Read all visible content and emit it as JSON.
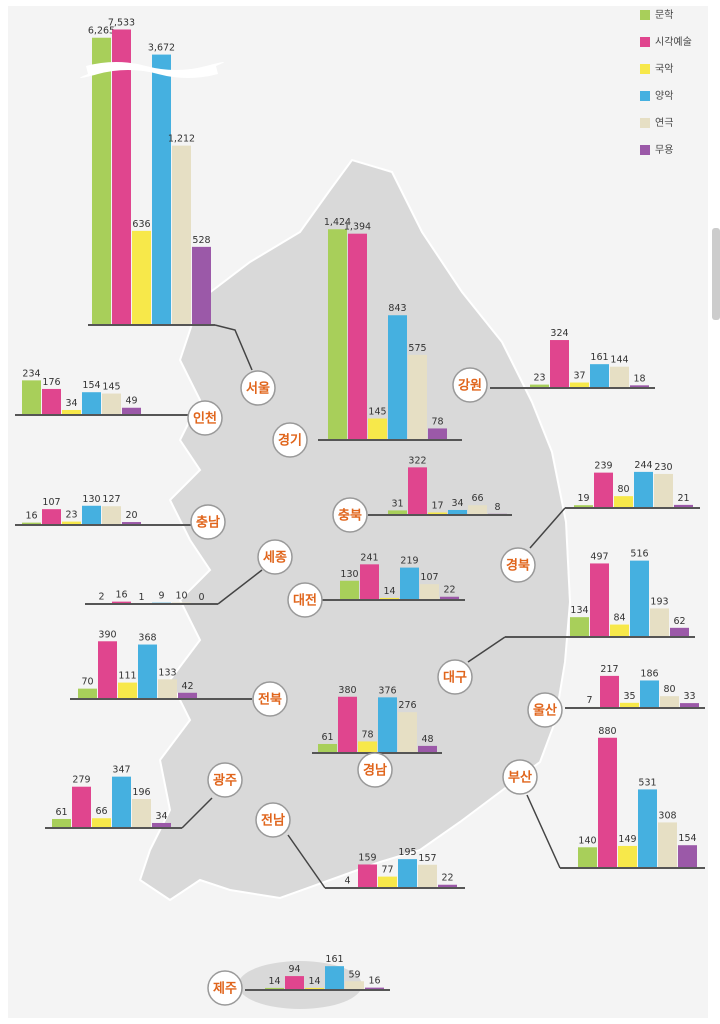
{
  "legend": {
    "labels": [
      "문학",
      "시각예술",
      "국악",
      "양악",
      "연극",
      "무용"
    ],
    "colors": [
      "#a8cf5a",
      "#e0458e",
      "#f7e84a",
      "#45b0e0",
      "#e6dfc4",
      "#9b59a8"
    ]
  },
  "chart_data": [
    {
      "type": "bar",
      "title": "서울",
      "values": [
        6265,
        7533,
        636,
        3672,
        1212,
        528
      ],
      "value_labels": [
        "6,265",
        "7,533",
        "636",
        "3,672",
        "1,212",
        "528"
      ]
    },
    {
      "type": "bar",
      "title": "인천",
      "values": [
        234,
        176,
        34,
        154,
        145,
        49
      ]
    },
    {
      "type": "bar",
      "title": "경기",
      "values": [
        1424,
        1394,
        145,
        843,
        575,
        78
      ],
      "value_labels": [
        "1,424",
        "1,394",
        "145",
        "843",
        "575",
        "78"
      ]
    },
    {
      "type": "bar",
      "title": "강원",
      "values": [
        23,
        324,
        37,
        161,
        144,
        18
      ]
    },
    {
      "type": "bar",
      "title": "충남",
      "values": [
        16,
        107,
        23,
        130,
        127,
        20
      ]
    },
    {
      "type": "bar",
      "title": "충북",
      "values": [
        31,
        322,
        17,
        34,
        66,
        8
      ]
    },
    {
      "type": "bar",
      "title": "세종",
      "values": [
        2,
        16,
        1,
        9,
        10,
        0
      ]
    },
    {
      "type": "bar",
      "title": "대전",
      "values": [
        130,
        241,
        14,
        219,
        107,
        22
      ]
    },
    {
      "type": "bar",
      "title": "경북",
      "values": [
        19,
        239,
        80,
        244,
        230,
        21
      ]
    },
    {
      "type": "bar",
      "title": "대구",
      "values": [
        134,
        497,
        84,
        516,
        193,
        62
      ]
    },
    {
      "type": "bar",
      "title": "전북",
      "values": [
        70,
        390,
        111,
        368,
        133,
        42
      ]
    },
    {
      "type": "bar",
      "title": "경남",
      "values": [
        61,
        380,
        78,
        376,
        276,
        48
      ]
    },
    {
      "type": "bar",
      "title": "울산",
      "values": [
        7,
        217,
        35,
        186,
        80,
        33
      ]
    },
    {
      "type": "bar",
      "title": "광주",
      "values": [
        61,
        279,
        66,
        347,
        196,
        34
      ]
    },
    {
      "type": "bar",
      "title": "부산",
      "values": [
        140,
        880,
        149,
        531,
        308,
        154
      ]
    },
    {
      "type": "bar",
      "title": "전남",
      "values": [
        4,
        159,
        77,
        195,
        157,
        22
      ]
    },
    {
      "type": "bar",
      "title": "제주",
      "values": [
        14,
        94,
        14,
        161,
        59,
        16
      ]
    }
  ]
}
